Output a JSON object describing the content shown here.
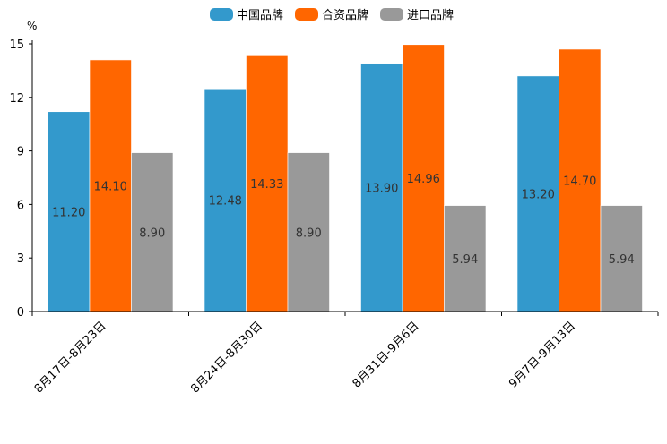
{
  "chart_data": {
    "type": "bar",
    "title": "",
    "xlabel": "",
    "ylabel": "%",
    "ylim": [
      0,
      15
    ],
    "yticks": [
      0,
      3,
      6,
      9,
      12,
      15
    ],
    "grid": false,
    "legend_position": "top-center",
    "categories": [
      "8月17日-8月23日",
      "8月24日-8月30日",
      "8月31日-9月6日",
      "9月7日-9月13日"
    ],
    "series": [
      {
        "name": "中国品牌",
        "color": "#3399cc",
        "values": [
          11.2,
          12.48,
          13.9,
          13.2
        ],
        "labels": [
          "11.20",
          "12.48",
          "13.90",
          "13.20"
        ]
      },
      {
        "name": "合资品牌",
        "color": "#ff6600",
        "values": [
          14.1,
          14.33,
          14.96,
          14.7
        ],
        "labels": [
          "14.10",
          "14.33",
          "14.96",
          "14.70"
        ]
      },
      {
        "name": "进口品牌",
        "color": "#999999",
        "values": [
          8.9,
          8.9,
          5.94,
          5.94
        ],
        "labels": [
          "8.90",
          "8.90",
          "5.94",
          "5.94"
        ]
      }
    ]
  }
}
